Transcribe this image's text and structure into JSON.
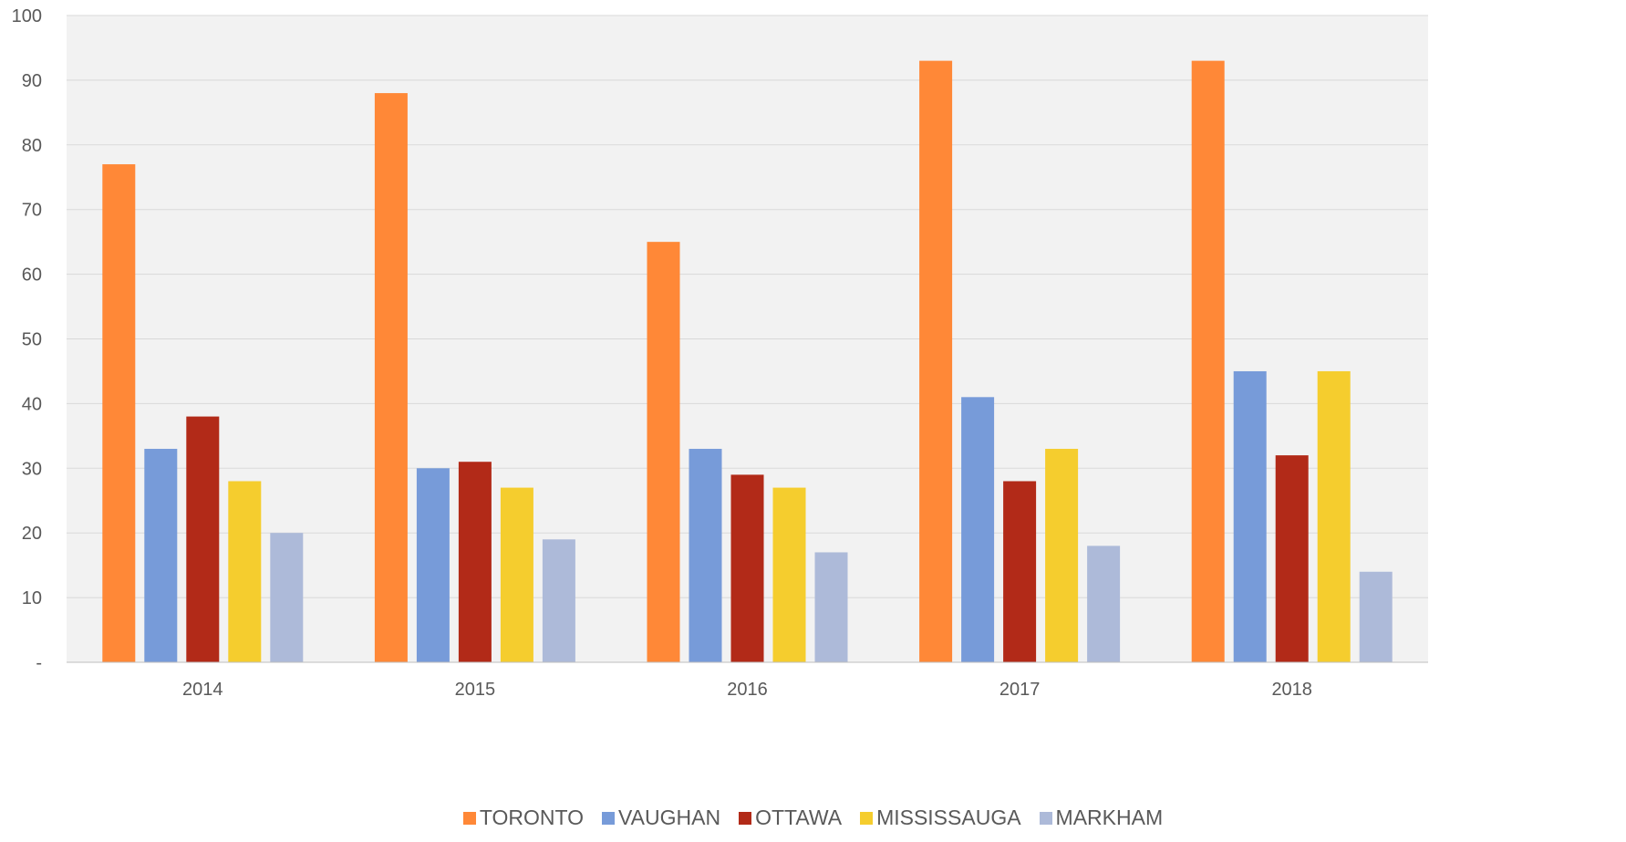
{
  "chart_data": {
    "type": "bar",
    "categories": [
      "2014",
      "2015",
      "2016",
      "2017",
      "2018"
    ],
    "series": [
      {
        "name": "TORONTO",
        "color": "#ff8837",
        "values": [
          77,
          88,
          65,
          93,
          93
        ]
      },
      {
        "name": "VAUGHAN",
        "color": "#779bd9",
        "values": [
          33,
          30,
          33,
          41,
          45
        ]
      },
      {
        "name": "OTTAWA",
        "color": "#b22a18",
        "values": [
          38,
          31,
          29,
          28,
          32
        ]
      },
      {
        "name": "MISSISSAUGA",
        "color": "#f5cd2e",
        "values": [
          28,
          27,
          27,
          33,
          45
        ]
      },
      {
        "name": "MARKHAM",
        "color": "#adbad9",
        "values": [
          20,
          19,
          17,
          18,
          14
        ]
      }
    ],
    "y_ticks": [
      "-",
      "10",
      "20",
      "30",
      "40",
      "50",
      "60",
      "70",
      "80",
      "90",
      "100"
    ],
    "ylim": [
      0,
      100
    ],
    "grid": true,
    "legend_position": "bottom",
    "plot_background": "#f2f2f2",
    "gridline_color": "#d9d9d9"
  }
}
